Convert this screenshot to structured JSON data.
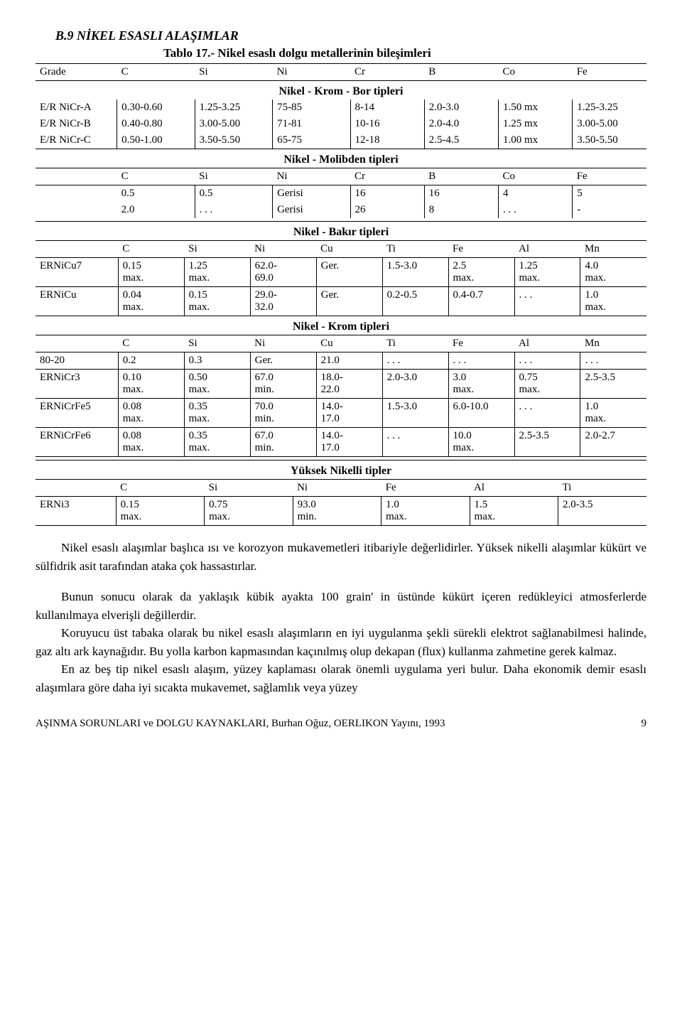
{
  "heading": "B.9 NİKEL ESASLI ALAŞIMLAR",
  "tableTitle": "Tablo 17.- Nikel esaslı dolgu metallerinin bileşimleri",
  "mainHeader": [
    "Grade",
    "C",
    "Si",
    "Ni",
    "Cr",
    "B",
    "Co",
    "Fe"
  ],
  "sectionA": {
    "title": "Nikel - Krom - Bor tipleri",
    "rows": [
      [
        "E/R NiCr-A",
        "0.30-0.60",
        "1.25-3.25",
        "75-85",
        "8-14",
        "2.0-3.0",
        "1.50 mx",
        "1.25-3.25"
      ],
      [
        "E/R NiCr-B",
        "0.40-0.80",
        "3.00-5.00",
        "71-81",
        "10-16",
        "2.0-4.0",
        "1.25 mx",
        "3.00-5.00"
      ],
      [
        "E/R NiCr-C",
        "0.50-1.00",
        "3.50-5.50",
        "65-75",
        "12-18",
        "2.5-4.5",
        "1.00 mx",
        "3.50-5.50"
      ]
    ]
  },
  "sectionB": {
    "title": "Nikel - Molibden tipleri",
    "header": [
      "",
      "C",
      "Si",
      "Ni",
      "Cr",
      "B",
      "Co",
      "Fe"
    ],
    "rows": [
      [
        "",
        "0.5",
        "0.5",
        "Gerisi",
        "16",
        "16",
        "4",
        "5"
      ],
      [
        "",
        "2.0",
        ". . .",
        "Gerisi",
        "26",
        "8",
        ". . .",
        "-"
      ]
    ]
  },
  "sectionC": {
    "title": "Nikel - Bakır tipleri",
    "header": [
      "",
      "C",
      "Si",
      "Ni",
      "Cu",
      "Ti",
      "Fe",
      "Al",
      "Mn"
    ],
    "rows": [
      [
        "ERNiCu7",
        "0.15 max.",
        "1.25 max.",
        "62.0-69.0",
        "Ger.",
        "1.5-3.0",
        "2.5 max.",
        "1.25 max.",
        "4.0 max."
      ],
      [
        "ERNiCu",
        "0.04 max.",
        "0.15 max.",
        "29.0-32.0",
        "Ger.",
        "0.2-0.5",
        "0.4-0.7",
        ". . .",
        "1.0 max."
      ]
    ]
  },
  "sectionD": {
    "title": "Nikel - Krom tipleri",
    "header": [
      "",
      "C",
      "Si",
      "Ni",
      "Cu",
      "Ti",
      "Fe",
      "Al",
      "Mn"
    ],
    "rows": [
      [
        "80-20",
        "0.2",
        "0.3",
        "Ger.",
        "21.0",
        ". . .",
        ". . .",
        ". . .",
        ". . ."
      ],
      [
        "ERNiCr3",
        "0.10 max.",
        "0.50 max.",
        "67.0 min.",
        "18.0-22.0",
        "2.0-3.0",
        "3.0 max.",
        "0.75 max.",
        "2.5-3.5"
      ],
      [
        "ERNiCrFe5",
        "0.08 max.",
        "0.35 max.",
        "70.0 min.",
        "14.0-17.0",
        "1.5-3.0",
        "6.0-10.0",
        ". . .",
        "1.0 max."
      ],
      [
        "ERNiCrFe6",
        "0.08 max.",
        "0.35 max.",
        "67.0 min.",
        "14.0-17.0",
        ". . .",
        "10.0 max.",
        "2.5-3.5",
        "2.0-2.7"
      ]
    ]
  },
  "sectionE": {
    "title": "Yüksek Nikelli tipler",
    "header": [
      "",
      "C",
      "Si",
      "Ni",
      "Fe",
      "Al",
      "Ti"
    ],
    "rows": [
      [
        "ERNi3",
        "0.15 max.",
        "0.75 max.",
        "93.0 min.",
        "1.0 max.",
        "1.5 max.",
        "2.0-3.5"
      ]
    ]
  },
  "para1": "Nikel esaslı alaşımlar başlıca ısı ve korozyon mukavemetleri itibariyle değerlidirler. Yüksek nikelli alaşımlar kükürt ve sülfidrik asit tarafından ataka çok hassastırlar.",
  "para2": "Bunun sonucu olarak da yaklaşık kübik ayakta 100 grain' in üstünde kükürt içeren redükleyici atmosferlerde kullanılmaya elverişli değillerdir.",
  "para3": "Koruyucu üst tabaka olarak bu nikel esaslı alaşımların en iyi uygulanma şekli sürekli elektrot sağlanabilmesi halinde, gaz altı ark kaynağıdır. Bu yolla karbon kapmasından kaçınılmış olup dekapan (flux) kullanma zahmetine gerek kalmaz.",
  "para4": "En az beş tip nikel esaslı alaşım, yüzey kaplaması olarak önemli uygulama yeri bulur. Daha ekonomik demir esaslı alaşımlara göre daha iyi sıcakta mukavemet, sağlamlık veya yüzey",
  "footerText": "AŞINMA SORUNLARI ve DOLGU KAYNAKLARI, Burhan Oğuz, OERLIKON Yayını, 1993",
  "footerPage": "9",
  "style": {
    "columnWidthsA": [
      "110px",
      "105px",
      "105px",
      "105px",
      "100px",
      "100px",
      "100px",
      "100px"
    ],
    "columnWidthsC": [
      "100px",
      "80px",
      "80px",
      "80px",
      "80px",
      "80px",
      "80px",
      "80px",
      "80px"
    ],
    "columnWidthsE": [
      "100px",
      "110px",
      "110px",
      "110px",
      "110px",
      "110px",
      "110px"
    ]
  }
}
